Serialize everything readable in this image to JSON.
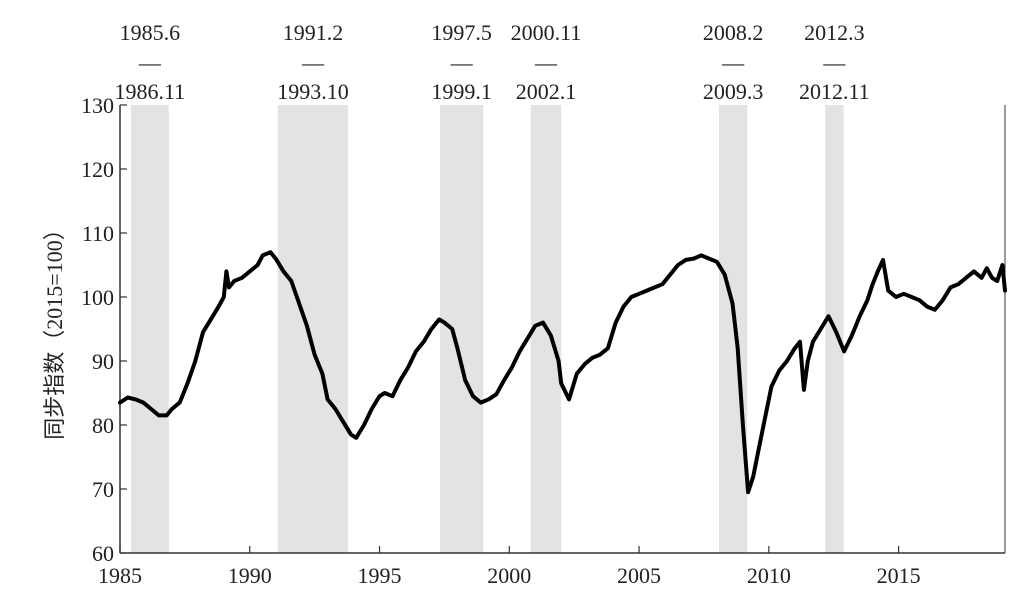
{
  "chart_data": {
    "type": "line",
    "title": "",
    "xlabel": "",
    "ylabel": "同步指数（2015=100）",
    "xlim": [
      1985.0,
      2019.1
    ],
    "ylim": [
      60,
      130
    ],
    "yticks": [
      "60",
      "70",
      "80",
      "90",
      "100",
      "110",
      "120",
      "130"
    ],
    "xticks": [
      "1985",
      "1990",
      "1995",
      "2000",
      "2005",
      "2010",
      "2015"
    ],
    "grid": false,
    "legend": "none",
    "colors": {
      "line": "#000000",
      "shade": "#e3e3e3",
      "axis": "#333333"
    },
    "recession_periods": [
      {
        "start_label": "1985.6",
        "end_label": "1986.11",
        "start": 1985.42,
        "end": 1986.88
      },
      {
        "start_label": "1991.2",
        "end_label": "1993.10",
        "start": 1991.08,
        "end": 1993.79
      },
      {
        "start_label": "1997.5",
        "end_label": "1999.1",
        "start": 1997.33,
        "end": 1999.0
      },
      {
        "start_label": "2000.11",
        "end_label": "2002.1",
        "start": 2000.83,
        "end": 2002.0
      },
      {
        "start_label": "2008.2",
        "end_label": "2009.3",
        "start": 2008.08,
        "end": 2009.17
      },
      {
        "start_label": "2012.3",
        "end_label": "2012.11",
        "start": 2012.17,
        "end": 2012.88
      }
    ],
    "period_dash": "—",
    "series": [
      {
        "x": [
          1985.0,
          1985.3,
          1985.6,
          1985.9,
          1986.2,
          1986.5,
          1986.8,
          1987.0,
          1987.3,
          1987.6,
          1987.9,
          1988.2,
          1988.5,
          1988.8,
          1989.0,
          1989.1,
          1989.2,
          1989.4,
          1989.7,
          1990.0,
          1990.3,
          1990.5,
          1990.8,
          1991.0,
          1991.3,
          1991.6,
          1991.9,
          1992.2,
          1992.5,
          1992.8,
          1993.0,
          1993.3,
          1993.6,
          1993.9,
          1994.1,
          1994.4,
          1994.7,
          1995.0,
          1995.2,
          1995.5,
          1995.8,
          1996.1,
          1996.4,
          1996.7,
          1997.0,
          1997.3,
          1997.5,
          1997.8,
          1998.0,
          1998.3,
          1998.6,
          1998.9,
          1999.2,
          1999.5,
          1999.8,
          2000.1,
          2000.4,
          2000.7,
          2001.0,
          2001.3,
          2001.6,
          2001.9,
          2002.0,
          2002.3,
          2002.6,
          2002.9,
          2003.2,
          2003.5,
          2003.8,
          2004.1,
          2004.4,
          2004.7,
          2005.0,
          2005.3,
          2005.6,
          2005.9,
          2006.2,
          2006.5,
          2006.8,
          2007.1,
          2007.4,
          2007.7,
          2008.0,
          2008.3,
          2008.6,
          2008.8,
          2009.0,
          2009.2,
          2009.4,
          2009.6,
          2009.8,
          2010.1,
          2010.4,
          2010.7,
          2011.0,
          2011.2,
          2011.35,
          2011.5,
          2011.7,
          2012.0,
          2012.3,
          2012.6,
          2012.9,
          2013.2,
          2013.5,
          2013.8,
          2014.0,
          2014.2,
          2014.4,
          2014.6,
          2014.9,
          2015.2,
          2015.5,
          2015.8,
          2016.1,
          2016.4,
          2016.7,
          2017.0,
          2017.3,
          2017.6,
          2017.9,
          2018.2,
          2018.4,
          2018.6,
          2018.8,
          2019.0,
          2019.1
        ],
        "values": [
          83.5,
          84.3,
          84.0,
          83.5,
          82.5,
          81.5,
          81.5,
          82.5,
          83.5,
          86.5,
          90.0,
          94.5,
          96.5,
          98.5,
          100.0,
          104.0,
          101.5,
          102.5,
          103.0,
          104.0,
          105.0,
          106.5,
          107.0,
          106.0,
          104.0,
          102.5,
          99.0,
          95.5,
          91.0,
          88.0,
          84.0,
          82.5,
          80.5,
          78.5,
          78.0,
          80.0,
          82.5,
          84.5,
          85.0,
          84.5,
          87.0,
          89.0,
          91.5,
          93.0,
          95.0,
          96.5,
          96.0,
          95.0,
          92.0,
          87.0,
          84.5,
          83.5,
          84.0,
          84.8,
          87.0,
          89.0,
          91.5,
          93.5,
          95.5,
          96.0,
          94.0,
          90.0,
          86.5,
          84.0,
          88.0,
          89.5,
          90.5,
          91.0,
          92.0,
          96.0,
          98.5,
          100.0,
          100.5,
          101.0,
          101.5,
          102.0,
          103.5,
          105.0,
          105.8,
          106.0,
          106.5,
          106.0,
          105.5,
          103.5,
          99.0,
          92.0,
          80.0,
          69.5,
          72.0,
          76.0,
          80.0,
          86.0,
          88.5,
          90.0,
          92.0,
          93.0,
          85.5,
          90.0,
          93.0,
          95.0,
          97.0,
          94.5,
          91.5,
          94.0,
          97.0,
          99.5,
          102.0,
          104.0,
          105.8,
          101.0,
          100.0,
          100.5,
          100.0,
          99.5,
          98.5,
          98.0,
          99.5,
          101.5,
          102.0,
          103.0,
          104.0,
          103.0,
          104.5,
          103.0,
          102.5,
          105.0,
          101.0
        ]
      }
    ]
  }
}
